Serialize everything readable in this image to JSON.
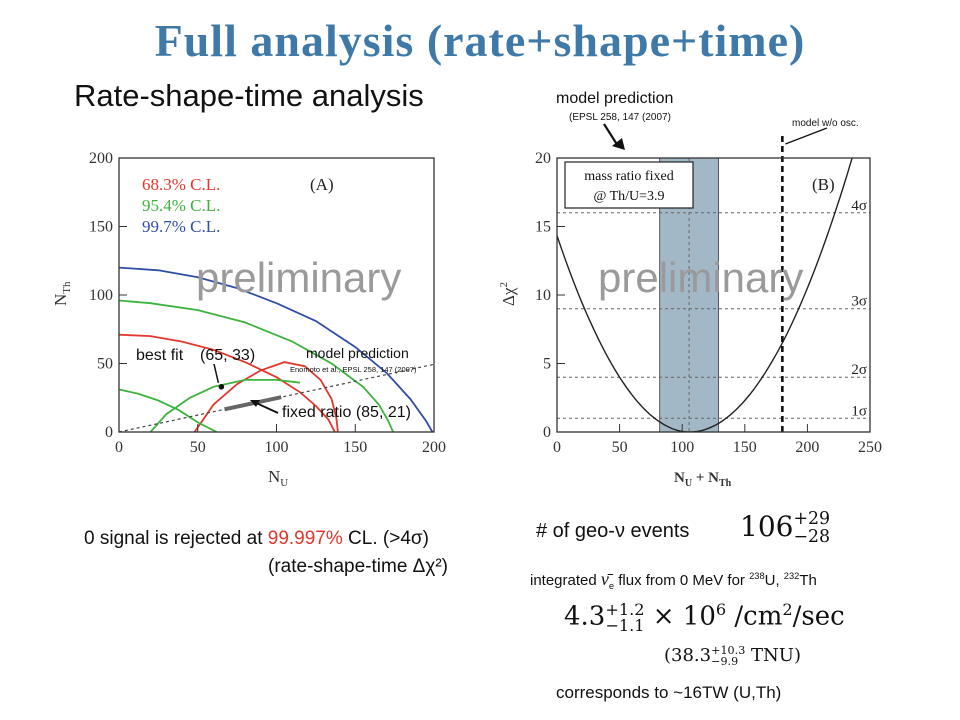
{
  "slide": {
    "title": "Full analysis (rate+shape+time)",
    "section_title": "Rate-shape-time analysis"
  },
  "colors": {
    "title": "#3f79a8",
    "cl68": "#e0382c",
    "cl954": "#3db23d",
    "cl997": "#2f4fa6",
    "band": "#a3b8c6"
  },
  "chart_data": [
    {
      "type": "line",
      "panel_label": "(A)",
      "xlabel": "N",
      "xlabel_sub": "U",
      "ylabel": "N",
      "ylabel_sub": "Th",
      "xlim": [
        0,
        200
      ],
      "ylim": [
        0,
        200
      ],
      "xticks": [
        0,
        50,
        100,
        150,
        200
      ],
      "yticks": [
        0,
        50,
        100,
        150,
        200
      ],
      "legend": [
        {
          "name": "68.3% C.L.",
          "color": "#e0382c"
        },
        {
          "name": "95.4% C.L.",
          "color": "#3db23d"
        },
        {
          "name": "99.7% C.L.",
          "color": "#2f4fa6"
        }
      ],
      "watermark": "preliminary",
      "best_fit": {
        "label": "best fit",
        "value_label": "(65, 33)",
        "x": 65,
        "y": 33
      },
      "model_prediction": {
        "label": "model prediction",
        "reference": "Enomoto et al., EPSL 258, 147 (2007)",
        "x": [
          0,
          200
        ],
        "y": [
          0,
          49.4
        ]
      },
      "fixed_ratio": {
        "label": "fixed ratio (85, 21)",
        "x": 85,
        "y": 21
      },
      "series": [
        {
          "name": "68.3% C.L.",
          "contours": [
            {
              "x": [
                48,
                60,
                75,
                90,
                105,
                118,
                128,
                135,
                138,
                139
              ],
              "y": [
                0,
                20,
                35,
                45,
                51,
                48,
                38,
                24,
                10,
                0
              ]
            },
            {
              "x": [
                0,
                20,
                40,
                60,
                80,
                100,
                115,
                125,
                133,
                137
              ],
              "y": [
                71,
                70,
                66,
                60,
                51,
                40,
                29,
                19,
                9,
                0
              ]
            }
          ]
        },
        {
          "name": "95.4% C.L.",
          "contours": [
            {
              "x": [
                20,
                30,
                45,
                60,
                80,
                100,
                115
              ],
              "y": [
                0,
                13,
                25,
                33,
                38,
                38,
                36
              ]
            },
            {
              "x": [
                62,
                50,
                38,
                25,
                12,
                0
              ],
              "y": [
                0,
                7,
                16,
                23,
                28,
                31
              ]
            },
            {
              "x": [
                0,
                20,
                50,
                80,
                110,
                135,
                155,
                165,
                171,
                174
              ],
              "y": [
                96,
                94,
                89,
                80,
                66,
                50,
                33,
                20,
                8,
                0
              ]
            }
          ]
        },
        {
          "name": "99.7% C.L.",
          "contours": [
            {
              "x": [
                0,
                25,
                50,
                75,
                100,
                125,
                150,
                170,
                185,
                195,
                199
              ],
              "y": [
                120,
                118,
                113,
                105,
                94,
                81,
                62,
                43,
                24,
                8,
                0
              ]
            }
          ]
        }
      ]
    },
    {
      "type": "line",
      "panel_label": "(B)",
      "xlabel": "N",
      "xlabel_sub1": "U",
      "xlabel_plus": " + N",
      "xlabel_sub2": "Th",
      "ylabel": "Δχ",
      "ylabel_sup": "2",
      "xlim": [
        0,
        250
      ],
      "ylim": [
        0,
        20
      ],
      "xticks": [
        0,
        50,
        100,
        150,
        200,
        250
      ],
      "yticks": [
        0,
        5,
        10,
        15,
        20
      ],
      "watermark": "preliminary",
      "band": {
        "x": [
          82,
          129
        ],
        "label1": "mass ratio fixed",
        "label2": "@ Th/U=3.9",
        "annotation": "model prediction",
        "reference": "(EPSL 258, 147 (2007)"
      },
      "no_osc": {
        "x": 180,
        "label": "model w/o osc."
      },
      "sigma_lines": [
        {
          "label": "1σ",
          "y": 1
        },
        {
          "label": "2σ",
          "y": 4
        },
        {
          "label": "3σ",
          "y": 9
        },
        {
          "label": "4σ",
          "y": 16
        }
      ],
      "series": [
        {
          "name": "Δχ²",
          "x_center": 106,
          "width_lo": 28,
          "width_hi": 29
        }
      ]
    }
  ],
  "left_note": {
    "prefix": "0 signal is rejected at ",
    "highlight": "99.997%",
    "suffix": " CL. (>4σ)",
    "line2": "(rate-shape-time Δχ²)"
  },
  "right_notes": {
    "events_label": "# of geo-ν events",
    "events_value": "106",
    "events_plus": "+29",
    "events_minus": "−28",
    "flux_label_pre": "integrated",
    "flux_nu": "ν̄",
    "flux_nu_sub": "e",
    "flux_label_mid": " flux from 0 MeV for ",
    "u_mass": "238",
    "u_sym": "U, ",
    "th_mass": "232",
    "th_sym": "Th",
    "flux_value": "4.3",
    "flux_plus": "+1.2",
    "flux_minus": "−1.1",
    "flux_times": " × 10",
    "flux_exp": "6",
    "flux_units": " /cm",
    "flux_units_exp": "2",
    "flux_units_end": "/sec",
    "tnu_open": "(38.3",
    "tnu_plus": "+10.3",
    "tnu_minus": "−9.9",
    "tnu_close": " TNU)",
    "power": "corresponds to ~16TW (U,Th)"
  }
}
